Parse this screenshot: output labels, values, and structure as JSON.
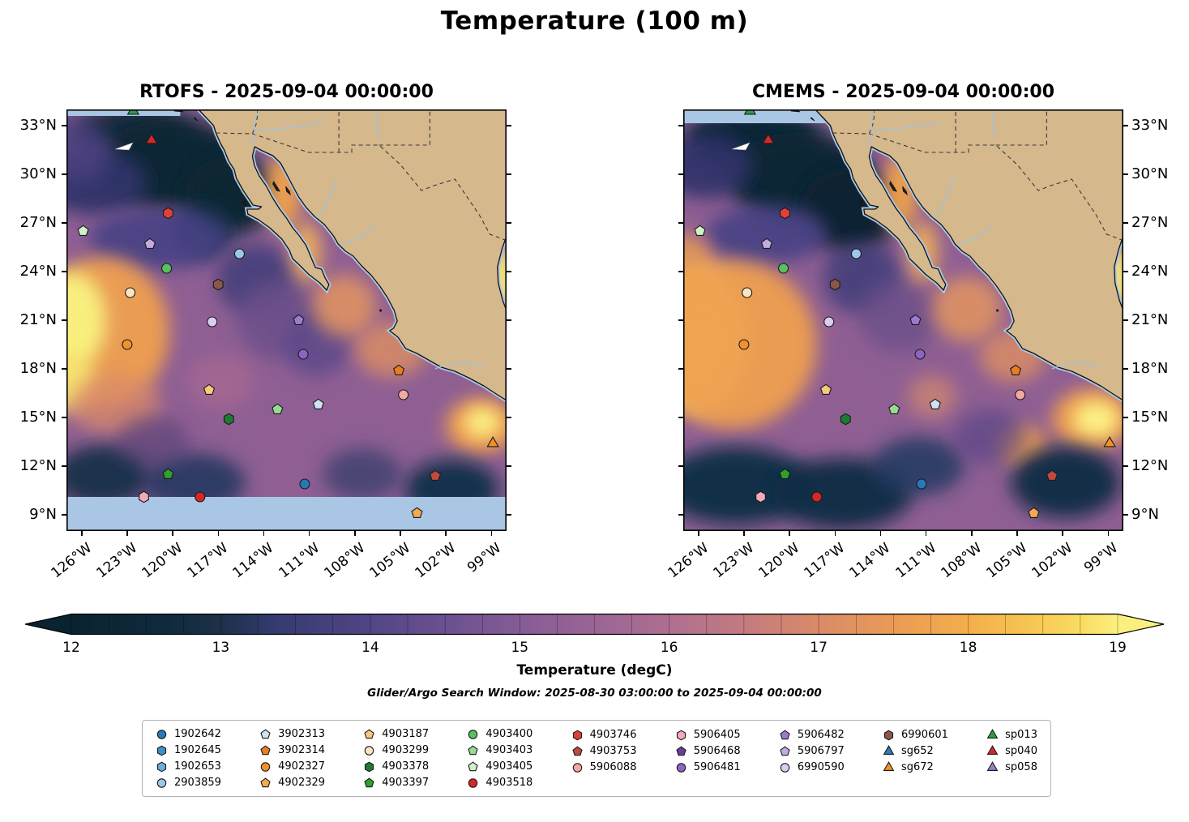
{
  "chart_data": {
    "type": "heatmap",
    "title": "Temperature (100 m)",
    "subtitle": "Glider/Argo Search Window: 2025-08-30 03:00:00 to 2025-09-04 00:00:00",
    "panels": [
      {
        "name": "RTOFS",
        "title": "RTOFS - 2025-09-04 00:00:00"
      },
      {
        "name": "CMEMS",
        "title": "CMEMS - 2025-09-04 00:00:00"
      }
    ],
    "axes": {
      "extent": {
        "lon_min": -127,
        "lon_max": -98,
        "lat_min": 8,
        "lat_max": 34
      },
      "lon_tick_values": [
        -126,
        -123,
        -120,
        -117,
        -114,
        -111,
        -108,
        -105,
        -102,
        -99
      ],
      "lon_tick_labels": [
        "126°W",
        "123°W",
        "120°W",
        "117°W",
        "114°W",
        "111°W",
        "108°W",
        "105°W",
        "102°W",
        "99°W"
      ],
      "lat_tick_values": [
        33,
        30,
        27,
        24,
        21,
        18,
        15,
        12,
        9
      ],
      "lat_tick_labels": [
        "33°N",
        "30°N",
        "27°N",
        "24°N",
        "21°N",
        "18°N",
        "15°N",
        "12°N",
        "9°N"
      ]
    },
    "colorbar": {
      "label": "Temperature (degC)",
      "min": 12,
      "max": 19,
      "tick_values": [
        12,
        13,
        14,
        15,
        16,
        17,
        18,
        19
      ],
      "tick_labels": [
        "12",
        "13",
        "14",
        "15",
        "16",
        "17",
        "18",
        "19"
      ],
      "gradient": [
        {
          "at": 0.0,
          "color": "#0b2330"
        },
        {
          "at": 0.09,
          "color": "#0f2a3c"
        },
        {
          "at": 0.143,
          "color": "#1d3048"
        },
        {
          "at": 0.19,
          "color": "#333a6e"
        },
        {
          "at": 0.286,
          "color": "#524586"
        },
        {
          "at": 0.36,
          "color": "#6b5190"
        },
        {
          "at": 0.429,
          "color": "#855c95"
        },
        {
          "at": 0.5,
          "color": "#9a6595"
        },
        {
          "at": 0.571,
          "color": "#ae6f90"
        },
        {
          "at": 0.64,
          "color": "#c37b81"
        },
        {
          "at": 0.714,
          "color": "#d98a68"
        },
        {
          "at": 0.79,
          "color": "#eb9c54"
        },
        {
          "at": 0.857,
          "color": "#f4ae4c"
        },
        {
          "at": 0.92,
          "color": "#f7c754"
        },
        {
          "at": 0.964,
          "color": "#f9dc62"
        },
        {
          "at": 1.0,
          "color": "#fbf07d"
        }
      ]
    },
    "legend": {
      "columns": [
        [
          {
            "label": "1902642",
            "shape": "circle",
            "color": "#2878b8"
          },
          {
            "label": "1902645",
            "shape": "hexagon",
            "color": "#4090c8"
          },
          {
            "label": "1902653",
            "shape": "hexagon",
            "color": "#6cacd8"
          },
          {
            "label": "2903859",
            "shape": "circle",
            "color": "#9cc8e8"
          }
        ],
        [
          {
            "label": "3902313",
            "shape": "pentagon",
            "color": "#cfe2f2"
          },
          {
            "label": "3902314",
            "shape": "pentagon",
            "color": "#e67e22"
          },
          {
            "label": "4902327",
            "shape": "circle",
            "color": "#f0912e"
          },
          {
            "label": "4902329",
            "shape": "pentagon",
            "color": "#f5a854"
          }
        ],
        [
          {
            "label": "4903187",
            "shape": "pentagon",
            "color": "#f8c880"
          },
          {
            "label": "4903299",
            "shape": "circle",
            "color": "#fce4c0"
          },
          {
            "label": "4903378",
            "shape": "hexagon",
            "color": "#1e7a34"
          },
          {
            "label": "4903397",
            "shape": "pentagon",
            "color": "#2fa02c"
          }
        ],
        [
          {
            "label": "4903400",
            "shape": "circle",
            "color": "#58c05e"
          },
          {
            "label": "4903403",
            "shape": "pentagon",
            "color": "#98da90"
          },
          {
            "label": "4903405",
            "shape": "pentagon",
            "color": "#cff0c8"
          },
          {
            "label": "4903518",
            "shape": "circle",
            "color": "#d62728"
          }
        ],
        [
          {
            "label": "4903746",
            "shape": "hexagon",
            "color": "#e04038"
          },
          {
            "label": "4903753",
            "shape": "pentagon",
            "color": "#bf4a40"
          },
          {
            "label": "5906088",
            "shape": "circle",
            "color": "#f2a8a4"
          }
        ],
        [
          {
            "label": "5906405",
            "shape": "hexagon",
            "color": "#f2aab8"
          },
          {
            "label": "5906468",
            "shape": "pentagon",
            "color": "#6a3d9a"
          },
          {
            "label": "5906481",
            "shape": "circle",
            "color": "#8d64c4"
          }
        ],
        [
          {
            "label": "5906482",
            "shape": "pentagon",
            "color": "#9d7ad0"
          },
          {
            "label": "5906797",
            "shape": "pentagon",
            "color": "#c3abe2"
          },
          {
            "label": "6990590",
            "shape": "circle",
            "color": "#dccdf0"
          }
        ],
        [
          {
            "label": "6990601",
            "shape": "hexagon",
            "color": "#8c5648"
          },
          {
            "label": "sg652",
            "shape": "triangle",
            "color": "#2b7bba"
          },
          {
            "label": "sg672",
            "shape": "triangle",
            "color": "#f59120"
          }
        ],
        [
          {
            "label": "sp013",
            "shape": "triangle",
            "color": "#28a048"
          },
          {
            "label": "sp040",
            "shape": "triangle",
            "color": "#d62728"
          },
          {
            "label": "sp058",
            "shape": "triangle",
            "color": "#9d7ad0"
          }
        ]
      ]
    },
    "markers": [
      {
        "id": "sp013",
        "lon": -122.6,
        "lat": 33.9
      },
      {
        "id": "track-arrow",
        "shape": "arrow",
        "color": "#ffffff",
        "lon": -123.1,
        "lat": 31.65
      },
      {
        "id": "sp040",
        "lon": -121.4,
        "lat": 32.1
      },
      {
        "id": "4903746",
        "lon": -120.3,
        "lat": 27.6
      },
      {
        "id": "4903405",
        "lon": -125.9,
        "lat": 26.5
      },
      {
        "id": "5906797",
        "lon": -121.5,
        "lat": 25.7
      },
      {
        "id": "2903859",
        "lon": -115.6,
        "lat": 25.1
      },
      {
        "id": "4903400",
        "lon": -120.4,
        "lat": 24.2
      },
      {
        "id": "6990601",
        "lon": -117.0,
        "lat": 23.2
      },
      {
        "id": "4903299",
        "lon": -122.8,
        "lat": 22.7
      },
      {
        "id": "6990590",
        "lon": -117.4,
        "lat": 20.9
      },
      {
        "id": "5906482",
        "lon": -111.7,
        "lat": 21.0
      },
      {
        "id": "4902327",
        "lon": -123.0,
        "lat": 19.5
      },
      {
        "id": "5906481",
        "lon": -111.4,
        "lat": 18.9
      },
      {
        "id": "3902314",
        "lon": -105.1,
        "lat": 17.9
      },
      {
        "id": "4903187",
        "lon": -117.6,
        "lat": 16.7
      },
      {
        "id": "5906088",
        "lon": -104.8,
        "lat": 16.4
      },
      {
        "id": "3902313",
        "lon": -110.4,
        "lat": 15.8
      },
      {
        "id": "4903403",
        "lon": -113.1,
        "lat": 15.5
      },
      {
        "id": "4903378",
        "lon": -116.3,
        "lat": 14.9
      },
      {
        "id": "sg672",
        "lon": -98.9,
        "lat": 13.4
      },
      {
        "id": "4903397",
        "lon": -120.3,
        "lat": 11.5
      },
      {
        "id": "4903753",
        "lon": -102.7,
        "lat": 11.4
      },
      {
        "id": "1902642",
        "lon": -111.3,
        "lat": 10.9
      },
      {
        "id": "5906405",
        "lon": -121.9,
        "lat": 10.1
      },
      {
        "id": "4903518",
        "lon": -118.2,
        "lat": 10.1
      },
      {
        "id": "4902329",
        "lon": -103.9,
        "lat": 9.1
      }
    ],
    "map_colors": {
      "land": "#d5b88c",
      "coastline": "#111111",
      "mask_lightblue": "#a9c6e4",
      "ocean_base": "#8f5f93"
    }
  }
}
